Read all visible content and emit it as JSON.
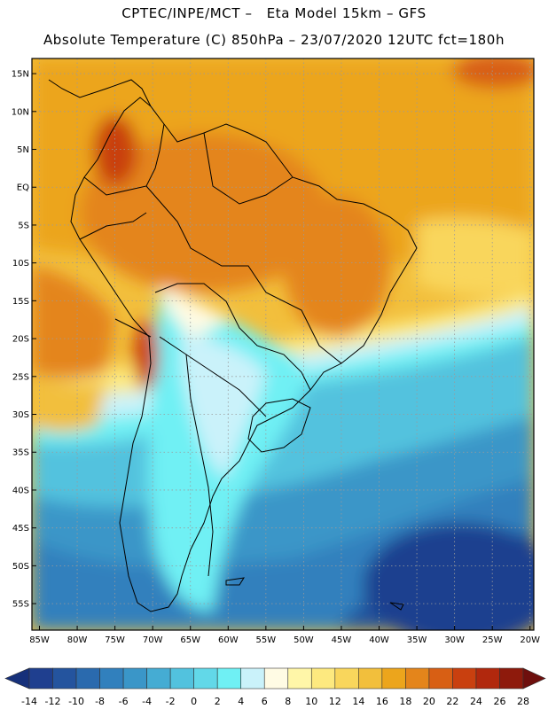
{
  "title_line1": "CPTEC/INPE/MCT –   Eta Model 15km – GFS",
  "title_line2": "Absolute Temperature (C) 850hPa – 23/07/2020 12UTC fct=180h",
  "lat_labels": [
    "15N",
    "10N",
    "5N",
    "EQ",
    "5S",
    "10S",
    "15S",
    "20S",
    "25S",
    "30S",
    "35S",
    "40S",
    "45S",
    "50S",
    "55S"
  ],
  "lat_values": [
    15,
    10,
    5,
    0,
    -5,
    -10,
    -15,
    -20,
    -25,
    -30,
    -35,
    -40,
    -45,
    -50,
    -55
  ],
  "lon_labels": [
    "85W",
    "80W",
    "75W",
    "70W",
    "65W",
    "60W",
    "55W",
    "50W",
    "45W",
    "40W",
    "35W",
    "30W",
    "25W",
    "20W"
  ],
  "lon_values": [
    -85,
    -80,
    -75,
    -70,
    -65,
    -60,
    -55,
    -50,
    -45,
    -40,
    -35,
    -30,
    -25,
    -20
  ],
  "colorbar": {
    "labels": [
      "-14",
      "-12",
      "-10",
      "-8",
      "-6",
      "-4",
      "-2",
      "0",
      "2",
      "4",
      "6",
      "8",
      "10",
      "12",
      "14",
      "16",
      "18",
      "20",
      "22",
      "24",
      "26",
      "28"
    ],
    "colors": [
      "#1f3f8f",
      "#24549e",
      "#2a6aae",
      "#3180bd",
      "#3a96c8",
      "#45acd3",
      "#52c2de",
      "#62d8e8",
      "#6ff0f4",
      "#caf2fa",
      "#fffbe4",
      "#fff6a8",
      "#fde97f",
      "#f9d65c",
      "#f2bf3c",
      "#eca51c",
      "#e4851b",
      "#d85f14",
      "#c9400f",
      "#b1280d",
      "#8e1a0c"
    ],
    "low_arrow_color": "#16307a",
    "high_arrow_color": "#6e0f0d"
  },
  "map_extent": {
    "lon_min": -86,
    "lon_max": -19.5,
    "lat_min": -58.5,
    "lat_max": 17
  }
}
